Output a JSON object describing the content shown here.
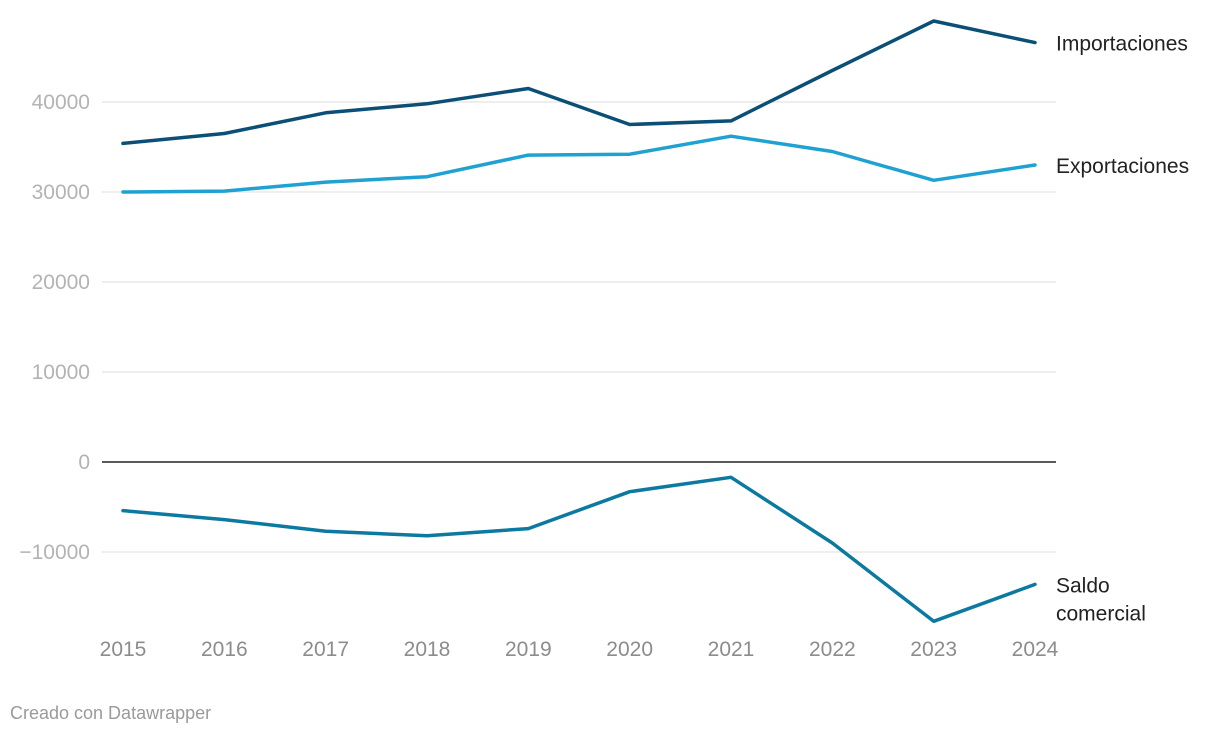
{
  "chart_data": {
    "type": "line",
    "x": [
      "2015",
      "2016",
      "2017",
      "2018",
      "2019",
      "2020",
      "2021",
      "2022",
      "2023",
      "2024"
    ],
    "ylim": [
      -18500,
      49000
    ],
    "yticks": [
      -10000,
      0,
      10000,
      20000,
      30000,
      40000
    ],
    "ytick_labels": [
      "−10000",
      "0",
      "10000",
      "20000",
      "30000",
      "40000"
    ],
    "grid": true,
    "series": [
      {
        "name": "Importaciones",
        "color": "#0b4f77",
        "values": [
          35400,
          36500,
          38800,
          39800,
          41500,
          37500,
          37900,
          43500,
          49000,
          46600
        ]
      },
      {
        "name": "Exportaciones",
        "color": "#1fa2d2",
        "values": [
          30000,
          30100,
          31100,
          31700,
          34100,
          34200,
          36200,
          34500,
          31300,
          33000
        ]
      },
      {
        "name": "Saldo comercial",
        "label_lines": [
          "Saldo",
          "comercial"
        ],
        "color": "#0c7aa0",
        "values": [
          -5400,
          -6400,
          -7700,
          -8200,
          -7400,
          -3300,
          -1700,
          -9000,
          -17700,
          -13600
        ]
      }
    ]
  },
  "credit": "Creado con Datawrapper"
}
